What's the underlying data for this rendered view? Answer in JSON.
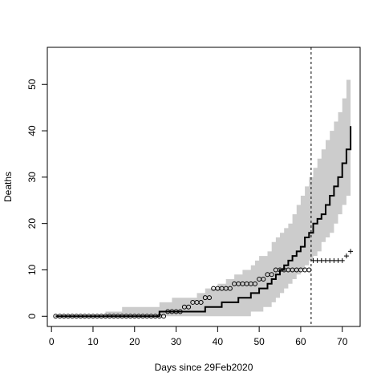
{
  "chart_data": {
    "type": "line",
    "title": "",
    "xlabel": "Days since 29Feb2020",
    "ylabel": "Deaths",
    "xlim": [
      -1,
      74.3
    ],
    "ylim": [
      -2.2,
      58
    ],
    "x_ticks": [
      0,
      10,
      20,
      30,
      40,
      50,
      60,
      70
    ],
    "y_ticks": [
      0,
      10,
      20,
      30,
      40,
      50
    ],
    "grid": false,
    "legend": "none",
    "cutoff_day": 62.5,
    "series": [
      {
        "style": "open-circle",
        "x": [
          1,
          2,
          3,
          4,
          5,
          6,
          7,
          8,
          9,
          10,
          11,
          12,
          13,
          14,
          15,
          16,
          17,
          18,
          19,
          20,
          21,
          22,
          23,
          24,
          25,
          26,
          27,
          28,
          29,
          30,
          31,
          32,
          33,
          34,
          35,
          36,
          37,
          38,
          39,
          40,
          41,
          42,
          43,
          44,
          45,
          46,
          47,
          48,
          49,
          50,
          51,
          52,
          53,
          54,
          55,
          56,
          57,
          58,
          59,
          60,
          61,
          62
        ],
        "y": [
          0,
          0,
          0,
          0,
          0,
          0,
          0,
          0,
          0,
          0,
          0,
          0,
          0,
          0,
          0,
          0,
          0,
          0,
          0,
          0,
          0,
          0,
          0,
          0,
          0,
          0,
          0,
          1,
          1,
          1,
          1,
          2,
          2,
          3,
          3,
          3,
          4,
          4,
          6,
          6,
          6,
          6,
          6,
          7,
          7,
          7,
          7,
          7,
          7,
          8,
          8,
          9,
          9,
          10,
          10,
          10,
          10,
          10,
          10,
          10,
          10,
          10
        ]
      },
      {
        "style": "plus",
        "x": [
          63,
          64,
          65,
          66,
          67,
          68,
          69,
          70,
          71,
          72
        ],
        "y": [
          12,
          12,
          12,
          12,
          12,
          12,
          12,
          12,
          13,
          14
        ]
      },
      {
        "style": "solid-line",
        "x": [
          1,
          2,
          3,
          4,
          5,
          6,
          7,
          8,
          9,
          10,
          11,
          12,
          13,
          14,
          15,
          16,
          17,
          18,
          19,
          20,
          21,
          22,
          23,
          24,
          25,
          26,
          27,
          28,
          29,
          30,
          31,
          32,
          33,
          34,
          35,
          36,
          37,
          38,
          39,
          40,
          41,
          42,
          43,
          44,
          45,
          46,
          47,
          48,
          49,
          50,
          51,
          52,
          53,
          54,
          55,
          56,
          57,
          58,
          59,
          60,
          61,
          62,
          63,
          64,
          65,
          66,
          67,
          68,
          69,
          70,
          71,
          72
        ],
        "y": [
          0,
          0,
          0,
          0,
          0,
          0,
          0,
          0,
          0,
          0,
          0,
          0,
          0,
          0,
          0,
          0,
          0,
          0,
          0,
          0,
          0,
          0,
          0,
          0,
          0,
          1,
          1,
          1,
          1,
          1,
          1,
          1,
          1,
          1,
          1,
          1,
          2,
          2,
          2,
          2,
          3,
          3,
          3,
          3,
          4,
          4,
          4,
          5,
          5,
          6,
          6,
          7,
          8,
          9,
          10,
          11,
          12,
          13,
          14,
          15,
          17,
          18,
          20,
          21,
          22,
          24,
          26,
          28,
          30,
          33,
          36,
          41
        ]
      },
      {
        "style": "band",
        "x": [
          1,
          2,
          3,
          4,
          5,
          6,
          7,
          8,
          9,
          10,
          11,
          12,
          13,
          14,
          15,
          16,
          17,
          18,
          19,
          20,
          21,
          22,
          23,
          24,
          25,
          26,
          27,
          28,
          29,
          30,
          31,
          32,
          33,
          34,
          35,
          36,
          37,
          38,
          39,
          40,
          41,
          42,
          43,
          44,
          45,
          46,
          47,
          48,
          49,
          50,
          51,
          52,
          53,
          54,
          55,
          56,
          57,
          58,
          59,
          60,
          61,
          62,
          63,
          64,
          65,
          66,
          67,
          68,
          69,
          70,
          71,
          72
        ],
        "lower": [
          0,
          0,
          0,
          0,
          0,
          0,
          0,
          0,
          0,
          0,
          0,
          0,
          0,
          0,
          0,
          0,
          0,
          0,
          0,
          0,
          0,
          0,
          0,
          0,
          0,
          0,
          0,
          0,
          0,
          0,
          0,
          0,
          0,
          0,
          0,
          0,
          0,
          0,
          0,
          0,
          0,
          0,
          0,
          0,
          0,
          0,
          0,
          1,
          1,
          1,
          2,
          2,
          3,
          4,
          5,
          6,
          7,
          8,
          9,
          10,
          11,
          12,
          13,
          14,
          16,
          17,
          18,
          20,
          22,
          24,
          26,
          28
        ],
        "upper": [
          0,
          0,
          0,
          0,
          0,
          0,
          0,
          0,
          0,
          0,
          0,
          0,
          1,
          1,
          1,
          1,
          2,
          2,
          2,
          2,
          2,
          2,
          2,
          2,
          2,
          3,
          3,
          3,
          4,
          4,
          4,
          4,
          4,
          4,
          5,
          5,
          6,
          6,
          6,
          7,
          7,
          8,
          8,
          9,
          9,
          10,
          10,
          11,
          12,
          13,
          13,
          14,
          16,
          17,
          18,
          19,
          20,
          22,
          24,
          26,
          28,
          30,
          32,
          34,
          36,
          38,
          40,
          42,
          44,
          47,
          51,
          55
        ]
      }
    ]
  }
}
